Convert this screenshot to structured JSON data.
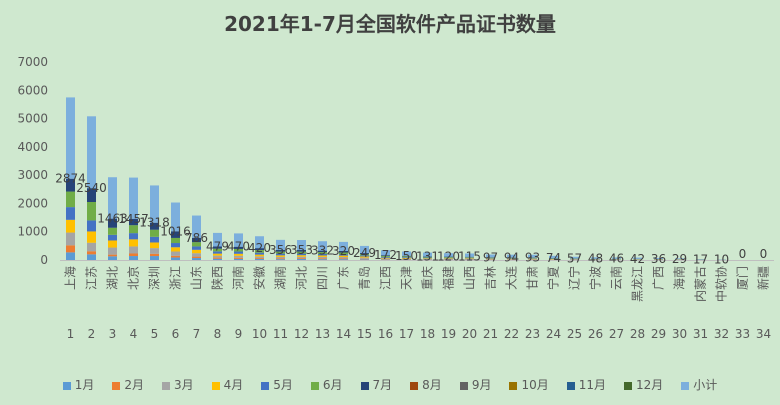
{
  "chart_data": {
    "type": "bar",
    "title": "2021年1-7月全国软件产品证书数量",
    "ylim": [
      0,
      7000
    ],
    "yticks": [
      0,
      1000,
      2000,
      3000,
      4000,
      5000,
      6000,
      7000
    ],
    "grid": false,
    "legend": "bottom",
    "categories": [
      "上海",
      "江苏",
      "湖北",
      "北京",
      "深圳",
      "浙江",
      "山东",
      "陕西",
      "河南",
      "安徽",
      "湖南",
      "河北",
      "四川",
      "广东",
      "青岛",
      "江西",
      "天津",
      "重庆",
      "福建",
      "山西",
      "吉林",
      "大连",
      "甘肃",
      "宁夏",
      "辽宁",
      "宁波",
      "云南",
      "黑龙江",
      "广西",
      "海南",
      "内蒙古",
      "中软协",
      "厦门",
      "新疆"
    ],
    "index_labels": [
      "1",
      "2",
      "3",
      "4",
      "5",
      "6",
      "7",
      "8",
      "9",
      "10",
      "11",
      "12",
      "13",
      "14",
      "15",
      "16",
      "17",
      "18",
      "19",
      "20",
      "21",
      "22",
      "23",
      "24",
      "25",
      "26",
      "27",
      "28",
      "29",
      "30",
      "31",
      "32",
      "33",
      "34"
    ],
    "data_labels": [
      "2874",
      "2540",
      "1463",
      "1457",
      "1318",
      "1016",
      "786",
      "479",
      "470",
      "420",
      "356",
      "353",
      "332",
      "320",
      "249",
      "172",
      "150",
      "131",
      "120",
      "115",
      "97",
      "94",
      "93",
      "74",
      "57",
      "48",
      "46",
      "42",
      "36",
      "29",
      "17",
      "10",
      "0",
      "0"
    ],
    "totals": [
      2874,
      2540,
      1463,
      1457,
      1318,
      1016,
      786,
      479,
      470,
      420,
      356,
      353,
      332,
      320,
      249,
      172,
      150,
      131,
      120,
      115,
      97,
      94,
      93,
      74,
      57,
      48,
      46,
      42,
      36,
      29,
      17,
      10,
      0,
      0
    ],
    "series": [
      {
        "name": "1月",
        "color": "#5b9bd5",
        "values": [
          270,
          200,
          130,
          140,
          140,
          90,
          70,
          45,
          40,
          40,
          30,
          35,
          30,
          30,
          25,
          15,
          15,
          12,
          10,
          10,
          8,
          8,
          8,
          6,
          5,
          4,
          4,
          4,
          3,
          3,
          2,
          1,
          0,
          0
        ]
      },
      {
        "name": "2月",
        "color": "#ed7d31",
        "values": [
          250,
          110,
          60,
          90,
          80,
          60,
          50,
          40,
          40,
          30,
          30,
          30,
          30,
          25,
          20,
          15,
          15,
          10,
          10,
          10,
          9,
          8,
          8,
          7,
          5,
          4,
          4,
          4,
          3,
          3,
          2,
          1,
          0,
          0
        ]
      },
      {
        "name": "3月",
        "color": "#a5a5a5",
        "values": [
          450,
          300,
          250,
          250,
          200,
          150,
          120,
          70,
          70,
          60,
          50,
          50,
          50,
          50,
          40,
          25,
          20,
          20,
          20,
          20,
          15,
          15,
          15,
          12,
          9,
          8,
          8,
          7,
          6,
          5,
          3,
          2,
          0,
          0
        ]
      },
      {
        "name": "4月",
        "color": "#ffc000",
        "values": [
          450,
          400,
          250,
          250,
          200,
          150,
          120,
          70,
          70,
          60,
          55,
          55,
          50,
          50,
          40,
          25,
          25,
          20,
          20,
          20,
          15,
          15,
          15,
          12,
          9,
          8,
          8,
          7,
          6,
          5,
          3,
          2,
          0,
          0
        ]
      },
      {
        "name": "5月",
        "color": "#4472c4",
        "values": [
          450,
          390,
          200,
          220,
          200,
          150,
          120,
          80,
          80,
          70,
          60,
          55,
          55,
          50,
          40,
          30,
          25,
          25,
          20,
          20,
          17,
          17,
          17,
          13,
          10,
          8,
          8,
          7,
          6,
          5,
          3,
          2,
          0,
          0
        ]
      },
      {
        "name": "6月",
        "color": "#70ad47",
        "values": [
          550,
          650,
          250,
          280,
          250,
          180,
          150,
          95,
          90,
          90,
          70,
          70,
          65,
          60,
          50,
          35,
          30,
          25,
          25,
          20,
          18,
          17,
          17,
          14,
          11,
          9,
          8,
          7,
          6,
          5,
          3,
          1,
          0,
          0
        ]
      },
      {
        "name": "7月",
        "color": "#264478",
        "values": [
          454,
          490,
          323,
          227,
          248,
          236,
          156,
          79,
          80,
          70,
          61,
          58,
          52,
          55,
          34,
          27,
          20,
          19,
          15,
          15,
          15,
          14,
          13,
          10,
          8,
          7,
          6,
          6,
          6,
          3,
          1,
          1,
          0,
          0
        ]
      },
      {
        "name": "8月",
        "color": "#9e480e",
        "values": [
          0,
          0,
          0,
          0,
          0,
          0,
          0,
          0,
          0,
          0,
          0,
          0,
          0,
          0,
          0,
          0,
          0,
          0,
          0,
          0,
          0,
          0,
          0,
          0,
          0,
          0,
          0,
          0,
          0,
          0,
          0,
          0,
          0,
          0
        ]
      },
      {
        "name": "9月",
        "color": "#636363",
        "values": [
          0,
          0,
          0,
          0,
          0,
          0,
          0,
          0,
          0,
          0,
          0,
          0,
          0,
          0,
          0,
          0,
          0,
          0,
          0,
          0,
          0,
          0,
          0,
          0,
          0,
          0,
          0,
          0,
          0,
          0,
          0,
          0,
          0,
          0
        ]
      },
      {
        "name": "10月",
        "color": "#997300",
        "values": [
          0,
          0,
          0,
          0,
          0,
          0,
          0,
          0,
          0,
          0,
          0,
          0,
          0,
          0,
          0,
          0,
          0,
          0,
          0,
          0,
          0,
          0,
          0,
          0,
          0,
          0,
          0,
          0,
          0,
          0,
          0,
          0,
          0,
          0
        ]
      },
      {
        "name": "11月",
        "color": "#255e91",
        "values": [
          0,
          0,
          0,
          0,
          0,
          0,
          0,
          0,
          0,
          0,
          0,
          0,
          0,
          0,
          0,
          0,
          0,
          0,
          0,
          0,
          0,
          0,
          0,
          0,
          0,
          0,
          0,
          0,
          0,
          0,
          0,
          0,
          0,
          0
        ]
      },
      {
        "name": "12月",
        "color": "#43682b",
        "values": [
          0,
          0,
          0,
          0,
          0,
          0,
          0,
          0,
          0,
          0,
          0,
          0,
          0,
          0,
          0,
          0,
          0,
          0,
          0,
          0,
          0,
          0,
          0,
          0,
          0,
          0,
          0,
          0,
          0,
          0,
          0,
          0,
          0,
          0
        ]
      },
      {
        "name": "小计",
        "color": "#7cafdd",
        "values": [
          2874,
          2540,
          1463,
          1457,
          1318,
          1016,
          786,
          479,
          470,
          420,
          356,
          353,
          332,
          320,
          249,
          172,
          150,
          131,
          120,
          115,
          97,
          94,
          93,
          74,
          57,
          48,
          46,
          42,
          36,
          29,
          17,
          10,
          0,
          0
        ]
      }
    ]
  }
}
